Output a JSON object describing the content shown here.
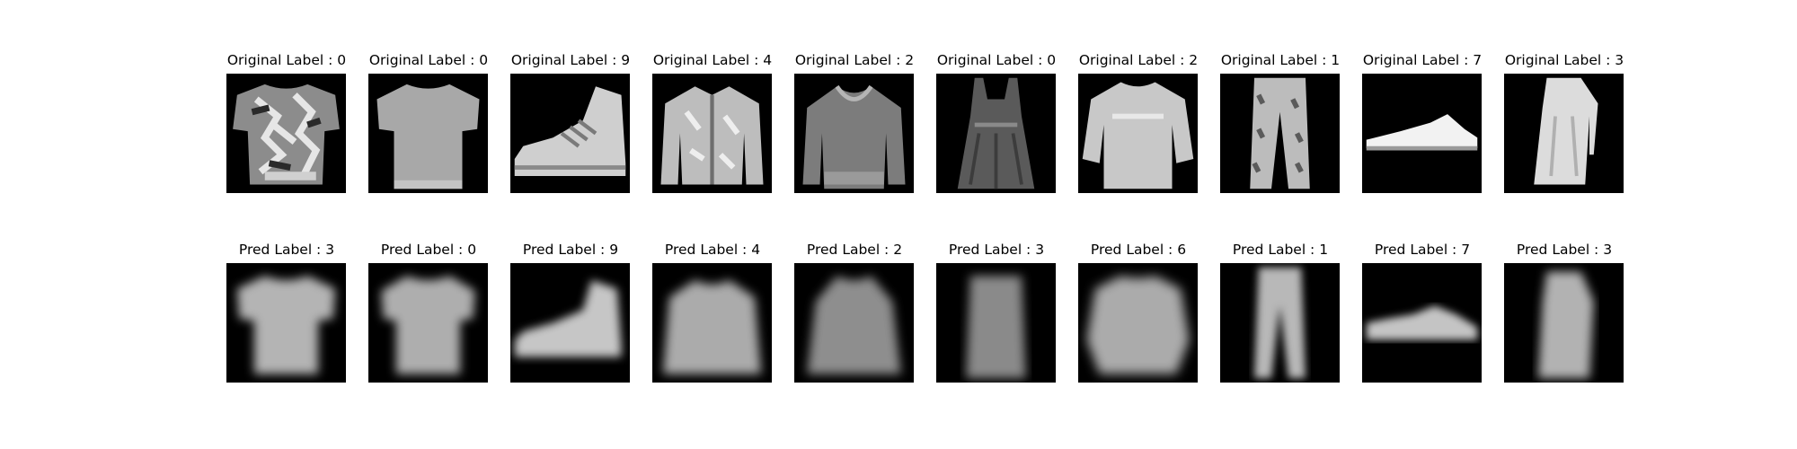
{
  "rows": [
    {
      "kind": "original",
      "items": [
        {
          "label": "Original Label : 0",
          "icon": "tshirt-patterned-icon"
        },
        {
          "label": "Original Label : 0",
          "icon": "tshirt-icon"
        },
        {
          "label": "Original Label : 9",
          "icon": "ankle-boot-icon"
        },
        {
          "label": "Original Label : 4",
          "icon": "coat-icon"
        },
        {
          "label": "Original Label : 2",
          "icon": "pullover-icon"
        },
        {
          "label": "Original Label : 0",
          "icon": "tank-dress-icon"
        },
        {
          "label": "Original Label : 2",
          "icon": "long-sleeve-top-icon"
        },
        {
          "label": "Original Label : 1",
          "icon": "trouser-icon"
        },
        {
          "label": "Original Label : 7",
          "icon": "sneaker-icon"
        },
        {
          "label": "Original Label : 3",
          "icon": "dress-icon"
        }
      ]
    },
    {
      "kind": "pred",
      "items": [
        {
          "label": "Pred Label : 3",
          "icon": "blurry-tshirt-icon"
        },
        {
          "label": "Pred Label : 0",
          "icon": "blurry-tshirt-icon"
        },
        {
          "label": "Pred Label : 9",
          "icon": "blurry-ankle-boot-icon"
        },
        {
          "label": "Pred Label : 4",
          "icon": "blurry-coat-icon"
        },
        {
          "label": "Pred Label : 2",
          "icon": "blurry-pullover-icon"
        },
        {
          "label": "Pred Label : 3",
          "icon": "blurry-dress-icon"
        },
        {
          "label": "Pred Label : 6",
          "icon": "blurry-shirt-icon"
        },
        {
          "label": "Pred Label : 1",
          "icon": "blurry-trouser-icon"
        },
        {
          "label": "Pred Label : 7",
          "icon": "blurry-sneaker-icon"
        },
        {
          "label": "Pred Label : 3",
          "icon": "blurry-dress-icon"
        }
      ]
    }
  ]
}
